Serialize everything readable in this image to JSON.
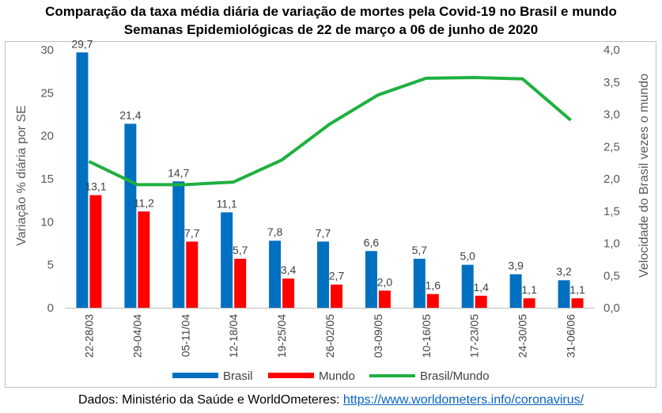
{
  "title_line1": "Comparação da taxa média diária de variação de mortes pela Covid-19 no Brasil e mundo",
  "title_line2": "Semanas Epidemiológicas de 22 de março a 06 de junho de 2020",
  "source": {
    "prefix": "Dados: Ministério da Saúde e WorldOmeteres: ",
    "link": "https://www.worldometers.info/coronavirus/"
  },
  "chart_data": {
    "type": "bar",
    "categories": [
      "22-28/03",
      "29-04/04",
      "05-11/04",
      "12-18/04",
      "19-25/04",
      "26-02/05",
      "03-09/05",
      "10-16/05",
      "17-23/05",
      "24-30/05",
      "31-06/06"
    ],
    "series": [
      {
        "name": "Brasil",
        "kind": "bar",
        "axis": "left",
        "color": "#0070c0",
        "values": [
          29.7,
          21.4,
          14.7,
          11.1,
          7.8,
          7.7,
          6.6,
          5.7,
          5.0,
          3.9,
          3.2
        ],
        "labels": [
          "29,7",
          "21,4",
          "14,7",
          "11,1",
          "7,8",
          "7,7",
          "6,6",
          "5,7",
          "5,0",
          "3,9",
          "3,2"
        ]
      },
      {
        "name": "Mundo",
        "kind": "bar",
        "axis": "left",
        "color": "#ff0000",
        "values": [
          13.1,
          11.2,
          7.7,
          5.7,
          3.4,
          2.7,
          2.0,
          1.6,
          1.4,
          1.1,
          1.1
        ],
        "labels": [
          "13,1",
          "11,2",
          "7,7",
          "5,7",
          "3,4",
          "2,7",
          "2,0",
          "1,6",
          "1,4",
          "1,1",
          "1,1"
        ]
      },
      {
        "name": "Brasil/Mundo",
        "kind": "line",
        "axis": "right",
        "color": "#1fb040",
        "values": [
          2.27,
          1.91,
          1.91,
          1.95,
          2.29,
          2.85,
          3.3,
          3.56,
          3.57,
          3.55,
          2.91
        ]
      }
    ],
    "ylabel": "Variação % diária por SE",
    "y2label": "Velocidade do Brasil vezes o mundo",
    "ylim": [
      0,
      30
    ],
    "y2lim": [
      0,
      4
    ],
    "yticks": [
      "0",
      "5",
      "10",
      "15",
      "20",
      "25",
      "30"
    ],
    "y2ticks": [
      "0,0",
      "0,5",
      "1,0",
      "1,5",
      "2,0",
      "2,5",
      "3,0",
      "3,5",
      "4,0"
    ],
    "grid": false,
    "legend_position": "bottom"
  }
}
